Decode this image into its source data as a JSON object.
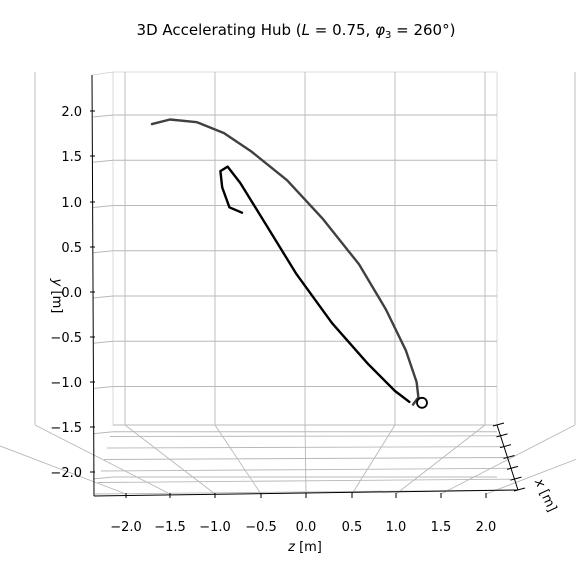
{
  "chart_data": {
    "type": "line",
    "projection": "3d",
    "title": "3D Accelerating Hub (L = 0.75, φ3 = 260°)",
    "title_parts": {
      "prefix": "3D Accelerating Hub (",
      "l_symbol": "L",
      "l_value": " = 0.75, ",
      "phi_symbol": "φ",
      "phi_subscript": "3",
      "phi_value": " = 260°)"
    },
    "axes": {
      "z": {
        "label_symbol": "z",
        "label_unit": " [m]",
        "ticks": [
          "−2.0",
          "−1.5",
          "−1.0",
          "−0.5",
          "0.0",
          "0.5",
          "1.0",
          "1.5",
          "2.0"
        ],
        "tick_values": [
          -2.0,
          -1.5,
          -1.0,
          -0.5,
          0.0,
          0.5,
          1.0,
          1.5,
          2.0
        ],
        "lim": [
          -2.3,
          2.3
        ]
      },
      "y": {
        "label_symbol": "y",
        "label_unit": " [m]",
        "ticks": [
          "−2.0",
          "−1.5",
          "−1.0",
          "−0.5",
          "0.0",
          "0.5",
          "1.0",
          "1.5",
          "2.0"
        ],
        "tick_values": [
          -2.0,
          -1.5,
          -1.0,
          -0.5,
          0.0,
          0.5,
          1.0,
          1.5,
          2.0
        ],
        "lim": [
          -2.1,
          2.3
        ]
      },
      "x": {
        "label_symbol": "x",
        "label_unit": " [m]"
      }
    },
    "grid": true,
    "series": [
      {
        "color": "#404040",
        "points": [
          [
            -0.85,
            1.9
          ],
          [
            -0.75,
            1.95
          ],
          [
            -0.6,
            1.92
          ],
          [
            -0.45,
            1.8
          ],
          [
            -0.3,
            1.6
          ],
          [
            -0.1,
            1.28
          ],
          [
            0.1,
            0.85
          ],
          [
            0.3,
            0.35
          ],
          [
            0.45,
            -0.15
          ],
          [
            0.56,
            -0.6
          ],
          [
            0.62,
            -0.95
          ],
          [
            0.63,
            -1.12
          ],
          [
            0.6,
            -1.2
          ]
        ]
      },
      {
        "color": "#000000",
        "points": [
          [
            -0.35,
            0.92
          ],
          [
            -0.42,
            0.98
          ],
          [
            -0.46,
            1.2
          ],
          [
            -0.47,
            1.38
          ],
          [
            -0.43,
            1.43
          ],
          [
            -0.36,
            1.25
          ],
          [
            -0.22,
            0.8
          ],
          [
            -0.05,
            0.25
          ],
          [
            0.15,
            -0.3
          ],
          [
            0.35,
            -0.75
          ],
          [
            0.5,
            -1.05
          ],
          [
            0.58,
            -1.17
          ]
        ]
      }
    ],
    "marker": {
      "shape": "circle-open",
      "z": 0.65,
      "y": -1.18
    }
  }
}
